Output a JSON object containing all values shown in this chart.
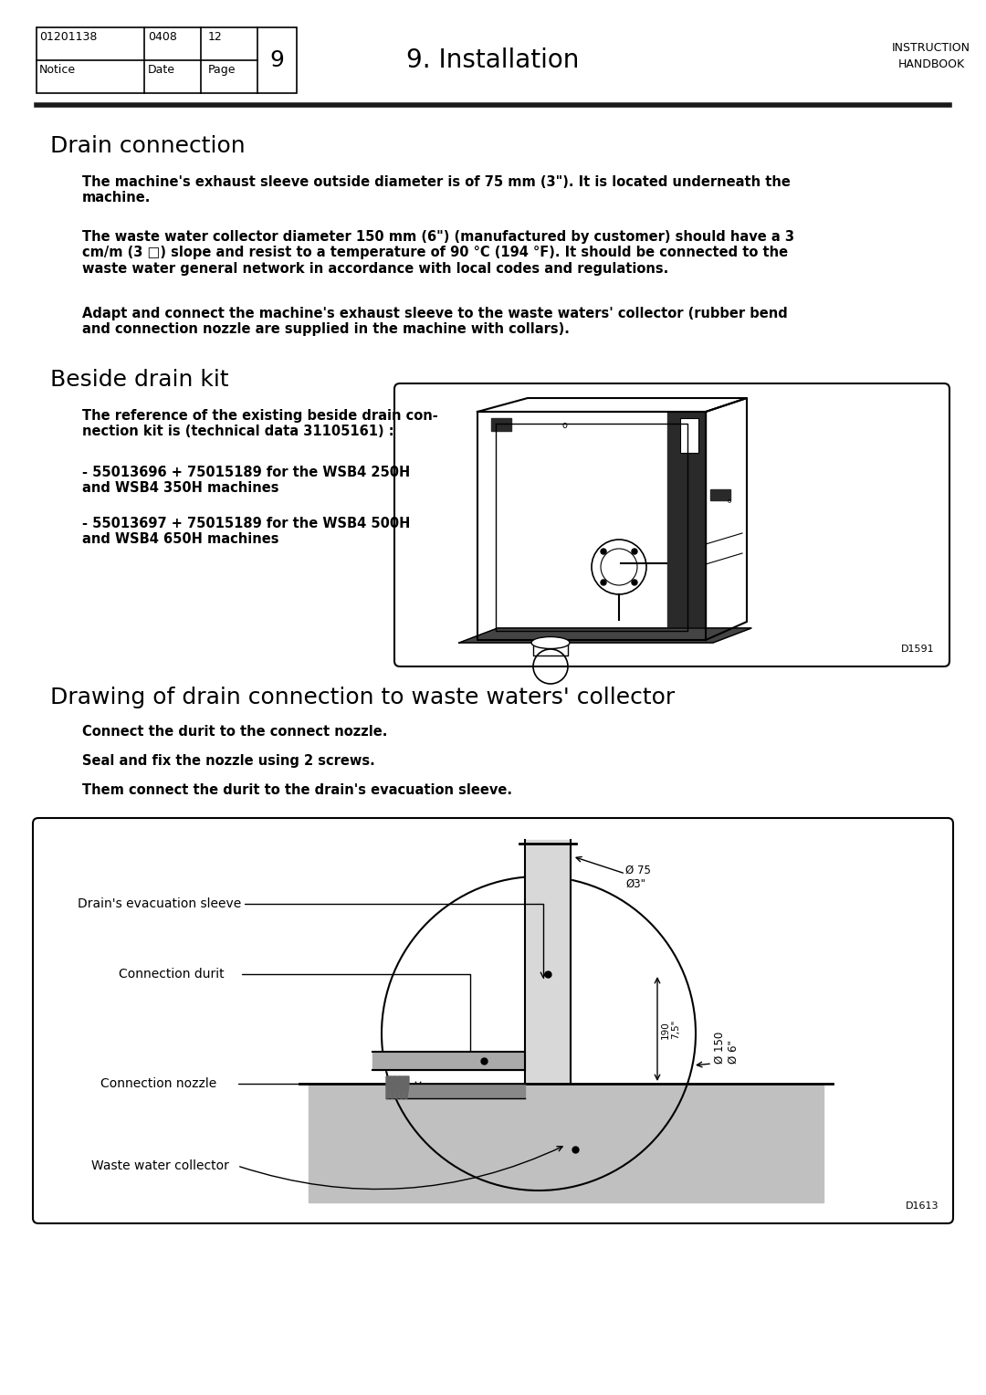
{
  "bg_color": "#ffffff",
  "page_width": 10.8,
  "page_height": 15.28,
  "header": {
    "page_num": "9",
    "center_title": "9. Installation",
    "right_line1": "INSTRUCTION",
    "right_line2": "HANDBOOK",
    "notice": "Notice",
    "date_label": "Date",
    "page_label": "Page",
    "val1": "01201138",
    "val2": "0408",
    "val3": "12"
  },
  "section1_title": "Drain connection",
  "para1": "The machine's exhaust sleeve outside diameter is of 75 mm (3\"). It is located underneath the\nmachine.",
  "para2": "The waste water collector diameter 150 mm (6\") (manufactured by customer) should have a 3\ncm/m (3 □) slope and resist to a temperature of 90 °C (194 °F). It should be connected to the\nwaste water general network in accordance with local codes and regulations.",
  "para3": "Adapt and connect the machine's exhaust sleeve to the waste waters' collector (rubber bend\nand connection nozzle are supplied in the machine with collars).",
  "section2_title": "Beside drain kit",
  "beside_para1": "The reference of the existing beside drain con-\nnection kit is (technical data 31105161) :",
  "beside_para2": "- 55013696 + 75015189 for the WSB4 250H\nand WSB4 350H machines",
  "beside_para3": "- 55013697 + 75015189 for the WSB4 500H\nand WSB4 650H machines",
  "diagram1_label": "D1591",
  "section3_title": "Drawing of drain connection to waste waters' collector",
  "draw_para1": "Connect the durit to the connect nozzle.",
  "draw_para2": "Seal and fix the nozzle using 2 screws.",
  "draw_para3": "Them connect the durit to the drain's evacuation sleeve.",
  "diagram2_label": "D1613",
  "label_drain_sleeve": "Drain's evacuation sleeve",
  "label_durit": "Connection durit",
  "label_nozzle": "Connection nozzle",
  "label_waste": "Waste water collector",
  "dim_d75": "Ø 75\nØ3\"",
  "dim_190": "190\n7,5\"",
  "dim_d150": "Ø 150\nØ 6\""
}
